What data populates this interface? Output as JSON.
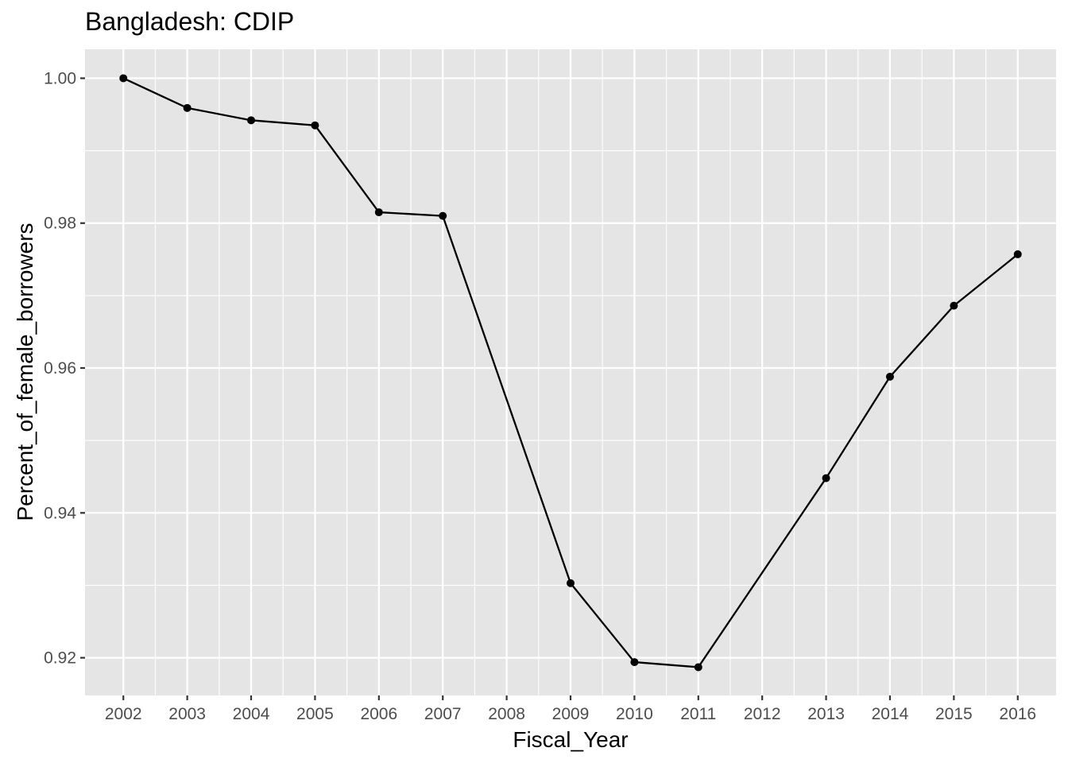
{
  "chart_data": {
    "type": "line",
    "title": "Bangladesh:  CDIP",
    "xlabel": "Fiscal_Year",
    "ylabel": "Percent_of_female_borrowers",
    "categories": [
      "2002",
      "2003",
      "2004",
      "2005",
      "2006",
      "2007",
      "2008",
      "2009",
      "2010",
      "2011",
      "2012",
      "2013",
      "2014",
      "2015",
      "2016"
    ],
    "x": [
      2002,
      2003,
      2004,
      2005,
      2006,
      2007,
      2009,
      2010,
      2011,
      2013,
      2014,
      2015,
      2016
    ],
    "y": [
      1.0,
      0.9959,
      0.9942,
      0.9935,
      0.9815,
      0.981,
      0.9303,
      0.9194,
      0.9187,
      0.9448,
      0.9588,
      0.9686,
      0.9757
    ],
    "y_ticks": [
      0.92,
      0.94,
      0.96,
      0.98,
      1.0
    ],
    "y_tick_labels": [
      "0.92",
      "0.94",
      "0.96",
      "0.98",
      "1.00"
    ],
    "ylim": [
      0.9148,
      1.004
    ],
    "grid": true,
    "background": "#e5e5e5",
    "grid_color": "#ffffff",
    "line_color": "#000000",
    "point_color": "#000000"
  }
}
